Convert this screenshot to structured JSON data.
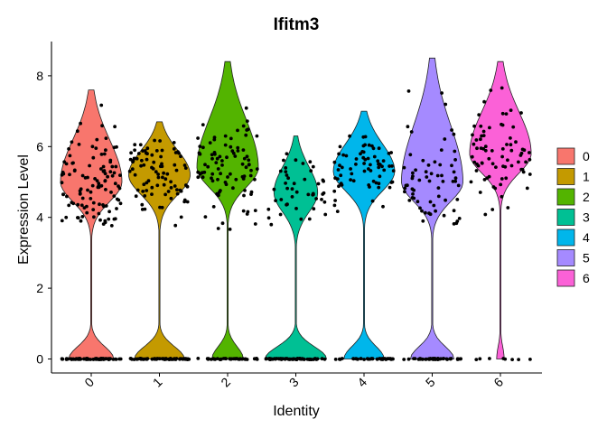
{
  "chart_data": {
    "type": "violin",
    "title": "Ifitm3",
    "xlabel": "Identity",
    "ylabel": "Expression Level",
    "ylim": [
      0,
      8.6
    ],
    "yticks": [
      0,
      2,
      4,
      6,
      8
    ],
    "categories": [
      "0",
      "1",
      "2",
      "3",
      "4",
      "5",
      "6"
    ],
    "colors": [
      "#F8766D",
      "#C49A00",
      "#53B400",
      "#00C094",
      "#00B6EB",
      "#A58AFF",
      "#FB61D7"
    ],
    "legend_position": "right",
    "grid": false,
    "series": [
      {
        "max": 7.6,
        "median": 5.0,
        "n_zero": 70,
        "n_pos": 110
      },
      {
        "max": 6.7,
        "median": 5.2,
        "n_zero": 60,
        "n_pos": 85
      },
      {
        "max": 8.4,
        "median": 5.4,
        "n_zero": 40,
        "n_pos": 90
      },
      {
        "max": 6.3,
        "median": 4.7,
        "n_zero": 55,
        "n_pos": 45
      },
      {
        "max": 7.0,
        "median": 5.3,
        "n_zero": 40,
        "n_pos": 70
      },
      {
        "max": 8.5,
        "median": 5.0,
        "n_zero": 40,
        "n_pos": 65
      },
      {
        "max": 8.4,
        "median": 5.8,
        "n_zero": 8,
        "n_pos": 75
      }
    ]
  }
}
